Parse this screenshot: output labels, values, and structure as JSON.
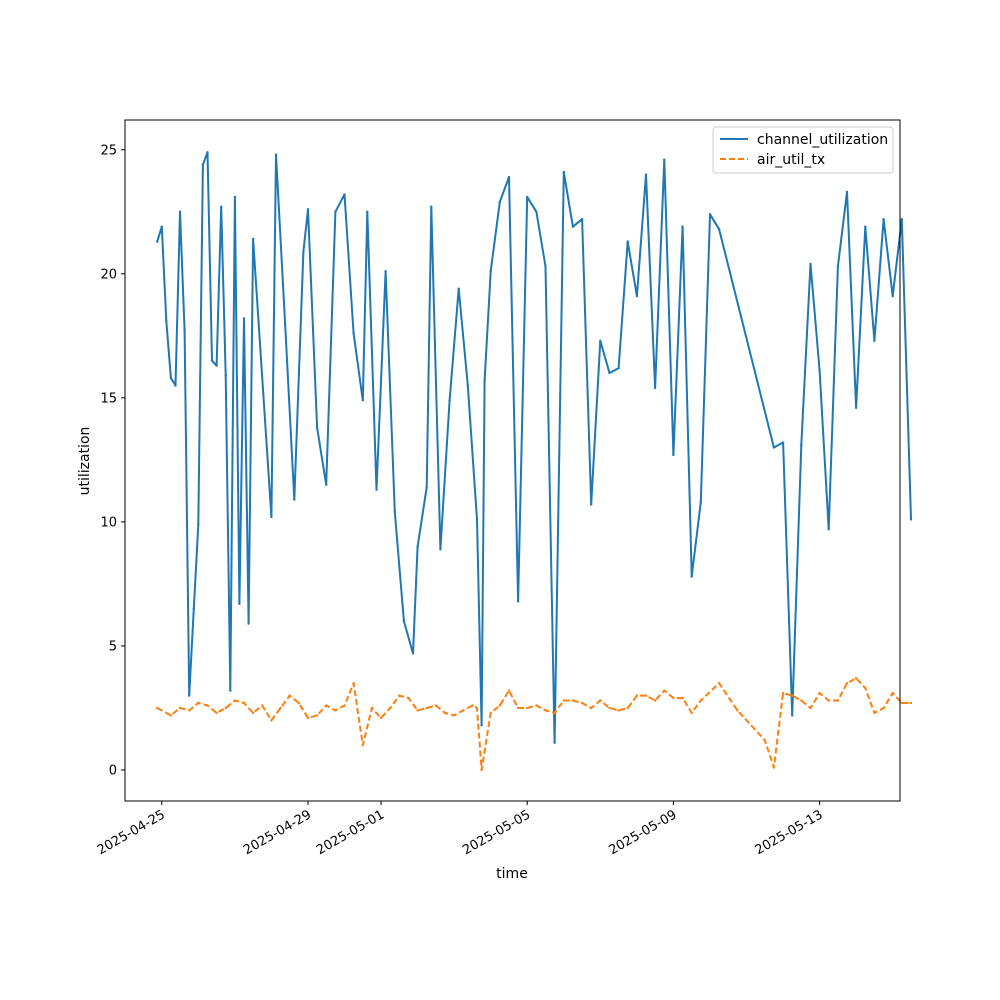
{
  "chart_data": {
    "type": "line",
    "title": "",
    "xlabel": "time",
    "ylabel": "utilization",
    "xlim": [
      "2025-04-23T23:51",
      "2025-05-15T04:48"
    ],
    "ylim": [
      -1.25,
      26.2
    ],
    "yticks": [
      0,
      5,
      10,
      15,
      20,
      25
    ],
    "xticks": [
      "2025-04-25",
      "2025-04-29",
      "2025-05-01",
      "2025-05-05",
      "2025-05-09",
      "2025-05-13"
    ],
    "grid": false,
    "legend_position": "top-right",
    "colors": {
      "channel_utilization": "#1f77b4",
      "air_util_tx": "#ff7f0e"
    },
    "series": [
      {
        "name": "channel_utilization",
        "style": "solid",
        "points": [
          [
            "2025-04-24T21:00",
            21.3
          ],
          [
            "2025-04-25T00:00",
            21.9
          ],
          [
            "2025-04-25T03:00",
            18.1
          ],
          [
            "2025-04-25T06:00",
            15.8
          ],
          [
            "2025-04-25T09:00",
            15.5
          ],
          [
            "2025-04-25T12:00",
            22.5
          ],
          [
            "2025-04-25T15:00",
            17.7
          ],
          [
            "2025-04-25T18:00",
            3.0
          ],
          [
            "2025-04-25T21:00",
            6.5
          ],
          [
            "2025-04-26T00:00",
            9.9
          ],
          [
            "2025-04-26T03:00",
            24.4
          ],
          [
            "2025-04-26T06:00",
            24.9
          ],
          [
            "2025-04-26T09:00",
            16.5
          ],
          [
            "2025-04-26T12:00",
            16.3
          ],
          [
            "2025-04-26T15:00",
            22.7
          ],
          [
            "2025-04-26T18:00",
            15.9
          ],
          [
            "2025-04-26T21:00",
            3.2
          ],
          [
            "2025-04-27T00:00",
            23.1
          ],
          [
            "2025-04-27T03:00",
            6.7
          ],
          [
            "2025-04-27T06:00",
            18.2
          ],
          [
            "2025-04-27T09:00",
            5.9
          ],
          [
            "2025-04-27T12:00",
            21.4
          ],
          [
            "2025-04-28T00:00",
            10.2
          ],
          [
            "2025-04-28T03:00",
            24.8
          ],
          [
            "2025-04-28T09:00",
            18.0
          ],
          [
            "2025-04-28T15:00",
            10.9
          ],
          [
            "2025-04-28T21:00",
            20.9
          ],
          [
            "2025-04-29T00:00",
            22.6
          ],
          [
            "2025-04-29T06:00",
            13.8
          ],
          [
            "2025-04-29T12:00",
            11.5
          ],
          [
            "2025-04-29T18:00",
            22.5
          ],
          [
            "2025-04-30T00:00",
            23.2
          ],
          [
            "2025-04-30T06:00",
            17.6
          ],
          [
            "2025-04-30T12:00",
            14.9
          ],
          [
            "2025-04-30T15:00",
            22.5
          ],
          [
            "2025-04-30T21:00",
            11.3
          ],
          [
            "2025-05-01T03:00",
            20.1
          ],
          [
            "2025-05-01T09:00",
            10.4
          ],
          [
            "2025-05-01T15:00",
            6.0
          ],
          [
            "2025-05-01T21:00",
            4.7
          ],
          [
            "2025-05-02T00:00",
            9.0
          ],
          [
            "2025-05-02T06:00",
            11.4
          ],
          [
            "2025-05-02T09:00",
            22.7
          ],
          [
            "2025-05-02T15:00",
            8.9
          ],
          [
            "2025-05-02T21:00",
            14.9
          ],
          [
            "2025-05-03T03:00",
            19.4
          ],
          [
            "2025-05-03T09:00",
            15.5
          ],
          [
            "2025-05-03T15:00",
            10.1
          ],
          [
            "2025-05-03T18:00",
            1.8
          ],
          [
            "2025-05-03T20:00",
            15.7
          ],
          [
            "2025-05-04T00:00",
            20.1
          ],
          [
            "2025-05-04T06:00",
            22.9
          ],
          [
            "2025-05-04T12:00",
            23.9
          ],
          [
            "2025-05-04T18:00",
            6.8
          ],
          [
            "2025-05-05T00:00",
            23.1
          ],
          [
            "2025-05-05T06:00",
            22.5
          ],
          [
            "2025-05-05T12:00",
            20.3
          ],
          [
            "2025-05-05T18:00",
            1.1
          ],
          [
            "2025-05-06T00:00",
            24.1
          ],
          [
            "2025-05-06T06:00",
            21.9
          ],
          [
            "2025-05-06T12:00",
            22.2
          ],
          [
            "2025-05-06T18:00",
            10.7
          ],
          [
            "2025-05-07T00:00",
            17.3
          ],
          [
            "2025-05-07T06:00",
            16.0
          ],
          [
            "2025-05-07T12:00",
            16.2
          ],
          [
            "2025-05-07T18:00",
            21.3
          ],
          [
            "2025-05-08T00:00",
            19.1
          ],
          [
            "2025-05-08T06:00",
            24.0
          ],
          [
            "2025-05-08T12:00",
            15.4
          ],
          [
            "2025-05-08T18:00",
            24.6
          ],
          [
            "2025-05-09T00:00",
            12.7
          ],
          [
            "2025-05-09T06:00",
            21.9
          ],
          [
            "2025-05-09T12:00",
            7.8
          ],
          [
            "2025-05-09T18:00",
            10.8
          ],
          [
            "2025-05-10T00:00",
            22.4
          ],
          [
            "2025-05-10T06:00",
            21.8
          ],
          [
            "2025-05-11T18:00",
            13.0
          ],
          [
            "2025-05-12T00:00",
            13.2
          ],
          [
            "2025-05-12T06:00",
            2.2
          ],
          [
            "2025-05-12T12:00",
            13.1
          ],
          [
            "2025-05-12T18:00",
            20.4
          ],
          [
            "2025-05-13T00:00",
            16.1
          ],
          [
            "2025-05-13T06:00",
            9.7
          ],
          [
            "2025-05-13T12:00",
            20.3
          ],
          [
            "2025-05-13T18:00",
            23.3
          ],
          [
            "2025-05-14T00:00",
            14.6
          ],
          [
            "2025-05-14T06:00",
            21.9
          ],
          [
            "2025-05-14T12:00",
            17.3
          ],
          [
            "2025-05-14T18:00",
            22.2
          ],
          [
            "2025-05-15T00:00",
            19.1
          ],
          [
            "2025-05-15T06:00",
            22.2
          ],
          [
            "2025-05-15T12:00",
            10.1
          ]
        ]
      },
      {
        "name": "air_util_tx",
        "style": "dashed",
        "points": [
          [
            "2025-04-24T21:00",
            2.5
          ],
          [
            "2025-04-25T06:00",
            2.2
          ],
          [
            "2025-04-25T12:00",
            2.5
          ],
          [
            "2025-04-25T18:00",
            2.4
          ],
          [
            "2025-04-26T00:00",
            2.7
          ],
          [
            "2025-04-26T06:00",
            2.6
          ],
          [
            "2025-04-26T12:00",
            2.3
          ],
          [
            "2025-04-26T18:00",
            2.5
          ],
          [
            "2025-04-27T00:00",
            2.8
          ],
          [
            "2025-04-27T06:00",
            2.7
          ],
          [
            "2025-04-27T12:00",
            2.3
          ],
          [
            "2025-04-27T18:00",
            2.6
          ],
          [
            "2025-04-28T00:00",
            2.0
          ],
          [
            "2025-04-28T06:00",
            2.5
          ],
          [
            "2025-04-28T12:00",
            3.0
          ],
          [
            "2025-04-28T18:00",
            2.7
          ],
          [
            "2025-04-29T00:00",
            2.1
          ],
          [
            "2025-04-29T06:00",
            2.2
          ],
          [
            "2025-04-29T12:00",
            2.6
          ],
          [
            "2025-04-29T18:00",
            2.4
          ],
          [
            "2025-04-30T00:00",
            2.6
          ],
          [
            "2025-04-30T06:00",
            3.5
          ],
          [
            "2025-04-30T12:00",
            1.0
          ],
          [
            "2025-04-30T18:00",
            2.5
          ],
          [
            "2025-05-01T00:00",
            2.1
          ],
          [
            "2025-05-01T06:00",
            2.5
          ],
          [
            "2025-05-01T12:00",
            3.0
          ],
          [
            "2025-05-01T18:00",
            2.9
          ],
          [
            "2025-05-02T00:00",
            2.4
          ],
          [
            "2025-05-02T06:00",
            2.5
          ],
          [
            "2025-05-02T12:00",
            2.6
          ],
          [
            "2025-05-02T18:00",
            2.3
          ],
          [
            "2025-05-03T00:00",
            2.2
          ],
          [
            "2025-05-03T06:00",
            2.4
          ],
          [
            "2025-05-03T12:00",
            2.6
          ],
          [
            "2025-05-03T15:00",
            2.5
          ],
          [
            "2025-05-03T18:00",
            0.0
          ],
          [
            "2025-05-04T00:00",
            2.3
          ],
          [
            "2025-05-04T06:00",
            2.6
          ],
          [
            "2025-05-04T12:00",
            3.2
          ],
          [
            "2025-05-04T18:00",
            2.5
          ],
          [
            "2025-05-05T00:00",
            2.5
          ],
          [
            "2025-05-05T06:00",
            2.6
          ],
          [
            "2025-05-05T12:00",
            2.4
          ],
          [
            "2025-05-05T18:00",
            2.3
          ],
          [
            "2025-05-06T00:00",
            2.8
          ],
          [
            "2025-05-06T06:00",
            2.8
          ],
          [
            "2025-05-06T12:00",
            2.7
          ],
          [
            "2025-05-06T18:00",
            2.5
          ],
          [
            "2025-05-07T00:00",
            2.8
          ],
          [
            "2025-05-07T06:00",
            2.5
          ],
          [
            "2025-05-07T12:00",
            2.4
          ],
          [
            "2025-05-07T18:00",
            2.5
          ],
          [
            "2025-05-08T00:00",
            3.0
          ],
          [
            "2025-05-08T06:00",
            3.0
          ],
          [
            "2025-05-08T12:00",
            2.8
          ],
          [
            "2025-05-08T18:00",
            3.2
          ],
          [
            "2025-05-09T00:00",
            2.9
          ],
          [
            "2025-05-09T06:00",
            2.9
          ],
          [
            "2025-05-09T12:00",
            2.3
          ],
          [
            "2025-05-09T18:00",
            2.8
          ],
          [
            "2025-05-10T06:00",
            3.5
          ],
          [
            "2025-05-10T18:00",
            2.4
          ],
          [
            "2025-05-11T12:00",
            1.2
          ],
          [
            "2025-05-11T18:00",
            0.1
          ],
          [
            "2025-05-12T00:00",
            3.1
          ],
          [
            "2025-05-12T06:00",
            3.0
          ],
          [
            "2025-05-12T12:00",
            2.8
          ],
          [
            "2025-05-12T18:00",
            2.5
          ],
          [
            "2025-05-13T00:00",
            3.1
          ],
          [
            "2025-05-13T06:00",
            2.8
          ],
          [
            "2025-05-13T12:00",
            2.8
          ],
          [
            "2025-05-13T18:00",
            3.5
          ],
          [
            "2025-05-14T00:00",
            3.7
          ],
          [
            "2025-05-14T06:00",
            3.3
          ],
          [
            "2025-05-14T12:00",
            2.3
          ],
          [
            "2025-05-14T18:00",
            2.5
          ],
          [
            "2025-05-15T00:00",
            3.1
          ],
          [
            "2025-05-15T06:00",
            2.7
          ],
          [
            "2025-05-15T12:00",
            2.7
          ]
        ]
      }
    ]
  }
}
